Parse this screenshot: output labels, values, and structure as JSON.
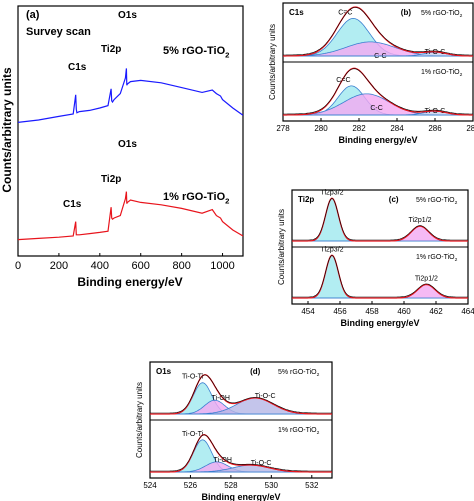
{
  "chart_data": [
    {
      "id": "a",
      "type": "line",
      "panel_label": "(a)",
      "title": "Survey scan",
      "xlabel": "Binding energy/eV",
      "ylabel": "Counts/arbitrary units",
      "xlim": [
        0,
        1100
      ],
      "xticks": [
        0,
        200,
        400,
        600,
        800,
        1000
      ],
      "series": [
        {
          "name": "5% rGO-TiO2",
          "name_base": "5% rGO-TiO",
          "name_sub": "2",
          "color": "#1a1aff",
          "x": [
            0,
            100,
            200,
            270,
            282,
            285,
            288,
            300,
            350,
            400,
            440,
            455,
            458,
            462,
            470,
            500,
            525,
            530,
            532,
            535,
            550,
            600,
            700,
            800,
            900,
            950,
            970,
            990,
            1000,
            1050,
            1100
          ],
          "y": [
            0.03,
            0.05,
            0.08,
            0.1,
            0.26,
            0.14,
            0.11,
            0.12,
            0.13,
            0.15,
            0.17,
            0.31,
            0.21,
            0.2,
            0.22,
            0.27,
            0.4,
            0.48,
            0.34,
            0.35,
            0.37,
            0.38,
            0.36,
            0.32,
            0.28,
            0.3,
            0.27,
            0.25,
            0.22,
            0.15,
            0.09
          ]
        },
        {
          "name": "1% rGO-TiO2",
          "name_base": "1% rGO-TiO",
          "name_sub": "2",
          "color": "#e8141c",
          "x": [
            0,
            100,
            200,
            270,
            282,
            285,
            288,
            300,
            350,
            400,
            440,
            455,
            458,
            462,
            470,
            500,
            525,
            530,
            532,
            535,
            550,
            600,
            700,
            800,
            900,
            950,
            970,
            990,
            1000,
            1050,
            1100
          ],
          "y": [
            0.02,
            0.03,
            0.04,
            0.05,
            0.17,
            0.06,
            0.06,
            0.06,
            0.07,
            0.08,
            0.09,
            0.29,
            0.2,
            0.19,
            0.2,
            0.22,
            0.36,
            0.42,
            0.32,
            0.33,
            0.35,
            0.33,
            0.31,
            0.28,
            0.24,
            0.27,
            0.22,
            0.2,
            0.17,
            0.1,
            0.05
          ]
        }
      ],
      "peak_labels": [
        "C1s",
        "Ti2p",
        "O1s",
        "C1s",
        "Ti2p",
        "O1s"
      ]
    },
    {
      "id": "b",
      "type": "line",
      "panel_label": "(b)",
      "title": "C1s",
      "xlabel": "Binding energy/eV",
      "ylabel": "Counts/arbitrary units",
      "xlim": [
        278,
        288
      ],
      "xticks": [
        278,
        280,
        282,
        284,
        286,
        288
      ],
      "subpanels": [
        {
          "sample": "5% rGO-TiO2",
          "sample_base": "5% rGO-TiO",
          "sample_sub": "2",
          "components": [
            {
              "name": "C=C",
              "center": 281.7,
              "width": 0.85,
              "height": 0.8,
              "fill": "#9fe8ef"
            },
            {
              "name": "C-C",
              "center": 282.6,
              "width": 1.3,
              "height": 0.3,
              "fill": "#f2a9f1"
            },
            {
              "name": "Ti-O-C",
              "center": 286.0,
              "width": 0.6,
              "height": 0.08,
              "fill": "#c6d0ee"
            }
          ]
        },
        {
          "sample": "1% rGO-TiO2",
          "sample_base": "1% rGO-TiO",
          "sample_sub": "2",
          "components": [
            {
              "name": "C=C",
              "center": 281.6,
              "width": 0.7,
              "height": 0.62,
              "fill": "#9fe8ef"
            },
            {
              "name": "C-C",
              "center": 282.4,
              "width": 1.2,
              "height": 0.45,
              "fill": "#f2a9f1"
            },
            {
              "name": "Ti-O-C",
              "center": 286.0,
              "width": 0.6,
              "height": 0.08,
              "fill": "#c6d0ee"
            }
          ]
        }
      ]
    },
    {
      "id": "c",
      "type": "line",
      "panel_label": "(c)",
      "title": "Ti2p",
      "xlabel": "Binding energy/eV",
      "ylabel": "Counts/arbitrary units",
      "xlim": [
        453,
        464
      ],
      "xticks": [
        454,
        456,
        458,
        460,
        462,
        464
      ],
      "subpanels": [
        {
          "sample": "5% rGO-TiO2",
          "sample_base": "5% rGO-TiO",
          "sample_sub": "2",
          "components": [
            {
              "name": "Ti2p3/2",
              "center": 455.5,
              "width": 0.4,
              "height": 0.95,
              "fill": "#9fe8ef"
            },
            {
              "name": "Ti2p1/2",
              "center": 461.0,
              "width": 0.55,
              "height": 0.33,
              "fill": "#f2a9f1"
            }
          ]
        },
        {
          "sample": "1% rGO-TiO2",
          "sample_base": "1% rGO-TiO",
          "sample_sub": "2",
          "components": [
            {
              "name": "Ti2p3/2",
              "center": 455.5,
              "width": 0.4,
              "height": 0.95,
              "fill": "#9fe8ef"
            },
            {
              "name": "Ti2p1/2",
              "center": 461.4,
              "width": 0.55,
              "height": 0.3,
              "fill": "#f2a9f1"
            }
          ]
        }
      ]
    },
    {
      "id": "d",
      "type": "line",
      "panel_label": "(d)",
      "title": "O1s",
      "xlabel": "Binding energy/eV",
      "ylabel": "Counts/arbitrary units",
      "xlim": [
        524,
        533
      ],
      "xticks": [
        524,
        526,
        528,
        530,
        532
      ],
      "subpanels": [
        {
          "sample": "5% rGO-TiO2",
          "sample_base": "5% rGO-TiO",
          "sample_sub": "2",
          "components": [
            {
              "name": "Ti-O-Ti",
              "center": 526.6,
              "width": 0.45,
              "height": 0.68,
              "fill": "#9fe8ef"
            },
            {
              "name": "Ti-OH",
              "center": 527.2,
              "width": 0.5,
              "height": 0.3,
              "fill": "#f2a9f1"
            },
            {
              "name": "Ti-O-C",
              "center": 529.2,
              "width": 0.9,
              "height": 0.35,
              "fill": "#b5b6e6"
            }
          ]
        },
        {
          "sample": "1% rGO-TiO2",
          "sample_base": "1% rGO-TiO",
          "sample_sub": "2",
          "components": [
            {
              "name": "Ti-O-Ti",
              "center": 526.6,
              "width": 0.45,
              "height": 0.7,
              "fill": "#9fe8ef"
            },
            {
              "name": "Ti-OH",
              "center": 527.3,
              "width": 0.55,
              "height": 0.22,
              "fill": "#f2a9f1"
            },
            {
              "name": "Ti-O-C",
              "center": 529.0,
              "width": 0.9,
              "height": 0.15,
              "fill": "#b5b6e6"
            }
          ]
        }
      ]
    }
  ]
}
